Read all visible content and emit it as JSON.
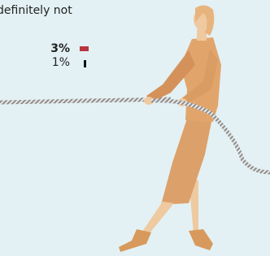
{
  "label": "definitely not",
  "items": [
    {
      "text": "3%"
    },
    {
      "text": "1%"
    }
  ]
}
